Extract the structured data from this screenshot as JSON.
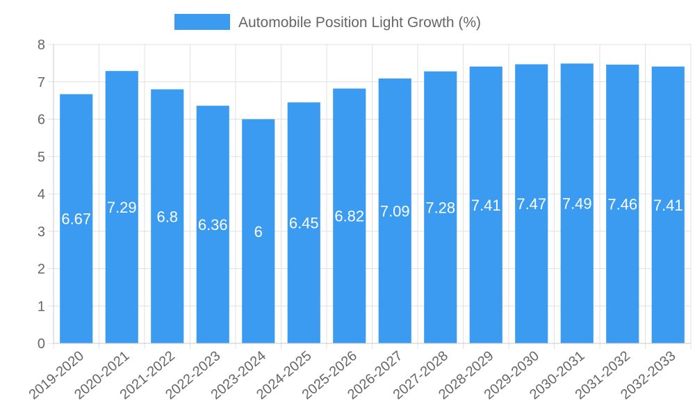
{
  "chart_data": {
    "type": "bar",
    "categories": [
      "2019-2020",
      "2020-2021",
      "2021-2022",
      "2022-2023",
      "2023-2024",
      "2024-2025",
      "2025-2026",
      "2026-2027",
      "2027-2028",
      "2028-2029",
      "2029-2030",
      "2030-2031",
      "2031-2032",
      "2032-2033"
    ],
    "series": [
      {
        "name": "Automobile Position Light Growth (%)",
        "values": [
          6.67,
          7.29,
          6.8,
          6.36,
          6,
          6.45,
          6.82,
          7.09,
          7.28,
          7.41,
          7.47,
          7.49,
          7.46,
          7.41
        ],
        "color": "#3a9bf0"
      }
    ],
    "title": "",
    "xlabel": "",
    "ylabel": "",
    "ylim": [
      0,
      8
    ],
    "yticks": [
      0,
      1,
      2,
      3,
      4,
      5,
      6,
      7,
      8
    ],
    "grid": true,
    "legend_position": "top-center",
    "data_labels": true
  }
}
